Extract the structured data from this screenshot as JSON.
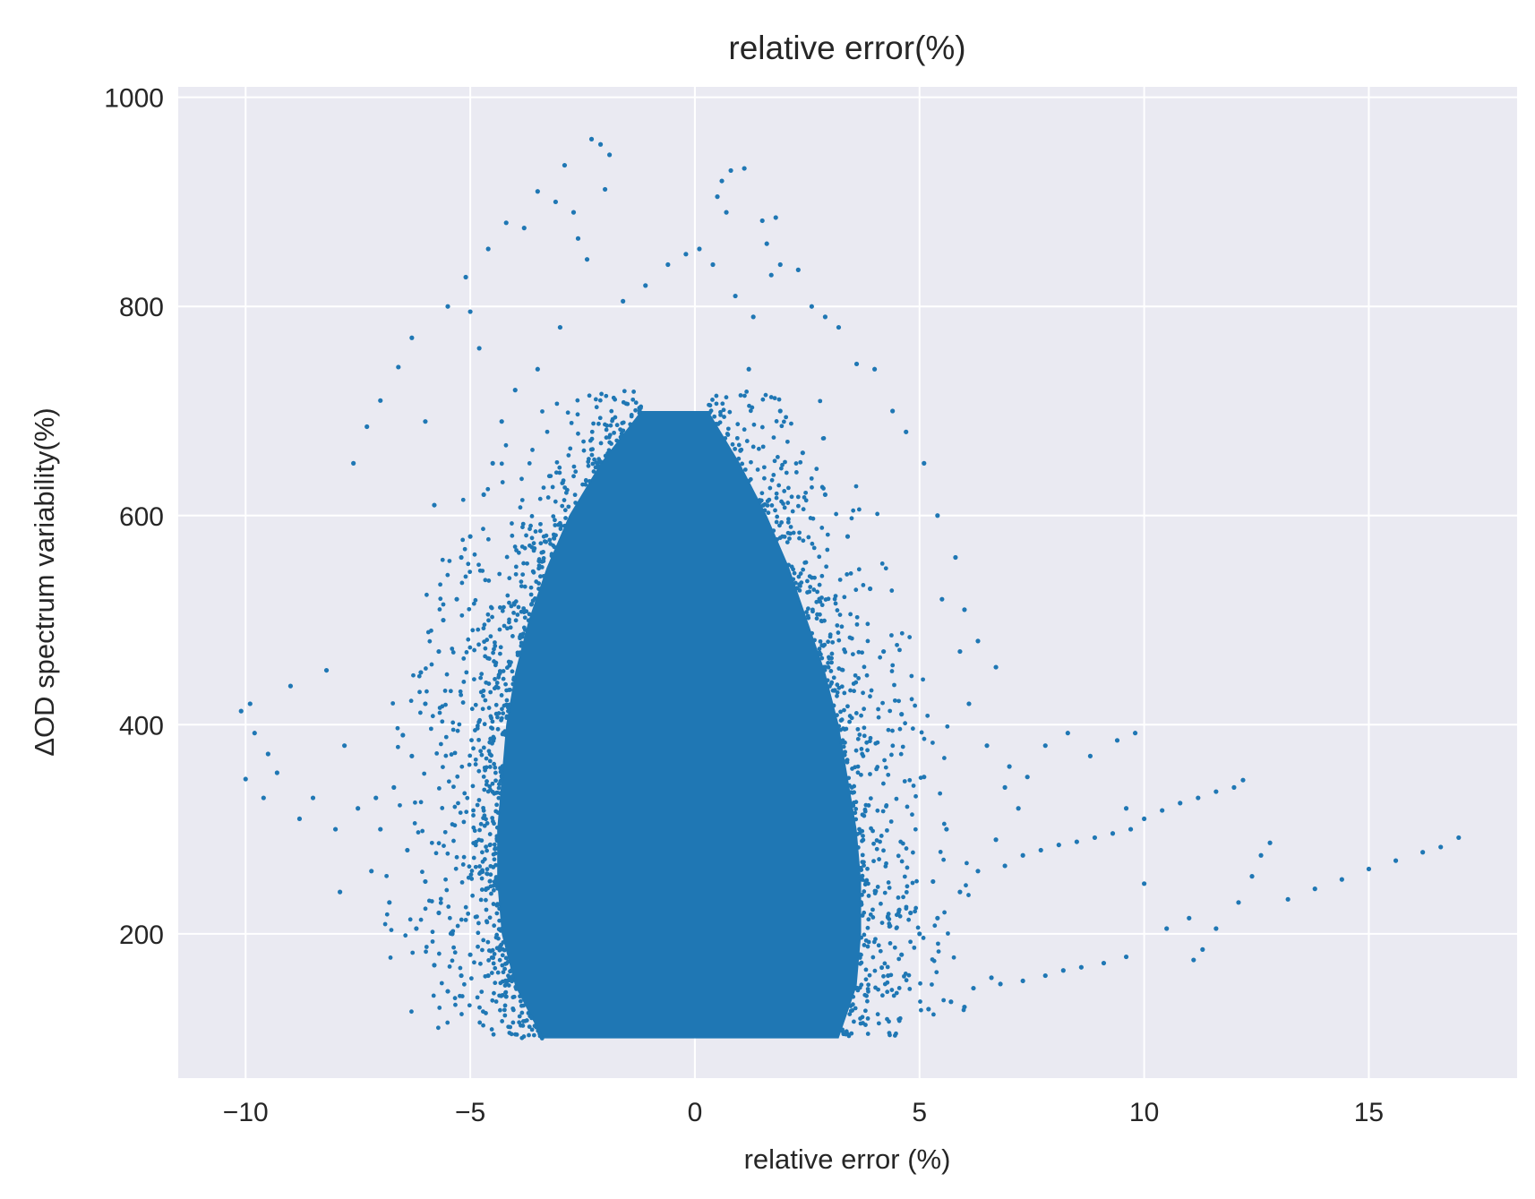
{
  "chart_data": {
    "type": "scatter",
    "title": "relative error(%)",
    "xlabel": "relative error (%)",
    "ylabel": "ΔOD spectrum variability(%)",
    "xlim": [
      -11.5,
      18.3
    ],
    "ylim": [
      62,
      1010
    ],
    "x_ticks": [
      -10,
      -5,
      0,
      5,
      10,
      15
    ],
    "x_tick_labels": [
      "−10",
      "−5",
      "0",
      "5",
      "10",
      "15"
    ],
    "y_ticks": [
      200,
      400,
      600,
      800,
      1000
    ],
    "y_tick_labels": [
      "200",
      "400",
      "600",
      "800",
      "1000"
    ],
    "grid": true,
    "background_color": "#eaeaf2",
    "grid_color": "#ffffff",
    "marker_color": "#1f77b4",
    "series": [
      {
        "dense_core_envelope": {
          "y": [
            100,
            150,
            200,
            250,
            300,
            350,
            400,
            450,
            500,
            550,
            600,
            650,
            700
          ],
          "x_min": [
            -3.4,
            -4.0,
            -4.3,
            -4.4,
            -4.4,
            -4.3,
            -4.2,
            -4.0,
            -3.7,
            -3.3,
            -2.8,
            -2.1,
            -1.2
          ],
          "x_max": [
            3.2,
            3.6,
            3.7,
            3.7,
            3.6,
            3.4,
            3.2,
            2.9,
            2.5,
            2.1,
            1.6,
            1.0,
            0.3
          ]
        },
        "points": [
          [
            -10.1,
            413
          ],
          [
            -9.9,
            420
          ],
          [
            -10.0,
            348
          ],
          [
            -9.8,
            392
          ],
          [
            -9.6,
            330
          ],
          [
            -9.5,
            372
          ],
          [
            -9.3,
            354
          ],
          [
            -9.0,
            437
          ],
          [
            -8.8,
            310
          ],
          [
            -8.5,
            330
          ],
          [
            -8.2,
            452
          ],
          [
            -8.0,
            300
          ],
          [
            -7.8,
            380
          ],
          [
            -7.5,
            320
          ],
          [
            -7.9,
            240
          ],
          [
            -7.2,
            260
          ],
          [
            -7.6,
            650
          ],
          [
            -7.3,
            685
          ],
          [
            -7.0,
            710
          ],
          [
            -6.6,
            742
          ],
          [
            -6.3,
            770
          ],
          [
            -6.0,
            690
          ],
          [
            -5.8,
            610
          ],
          [
            -5.5,
            800
          ],
          [
            -5.1,
            828
          ],
          [
            -5.0,
            795
          ],
          [
            -4.8,
            760
          ],
          [
            -4.6,
            855
          ],
          [
            -4.2,
            880
          ],
          [
            -3.8,
            875
          ],
          [
            -3.5,
            910
          ],
          [
            -3.1,
            900
          ],
          [
            -2.9,
            935
          ],
          [
            -2.7,
            890
          ],
          [
            -2.3,
            960
          ],
          [
            -2.1,
            955
          ],
          [
            -1.9,
            945
          ],
          [
            -2.0,
            912
          ],
          [
            -2.6,
            865
          ],
          [
            -2.4,
            845
          ],
          [
            -4.0,
            720
          ],
          [
            -4.5,
            650
          ],
          [
            -5.2,
            560
          ],
          [
            -5.6,
            500
          ],
          [
            -6.1,
            450
          ],
          [
            -6.5,
            390
          ],
          [
            -7.1,
            330
          ],
          [
            -6.8,
            230
          ],
          [
            -6.2,
            205
          ],
          [
            -5.8,
            170
          ],
          [
            -5.5,
            145
          ],
          [
            -5.2,
            160
          ],
          [
            0.6,
            920
          ],
          [
            0.8,
            930
          ],
          [
            1.1,
            932
          ],
          [
            0.5,
            905
          ],
          [
            0.7,
            890
          ],
          [
            1.5,
            882
          ],
          [
            1.8,
            885
          ],
          [
            1.6,
            860
          ],
          [
            1.7,
            830
          ],
          [
            1.9,
            840
          ],
          [
            2.3,
            835
          ],
          [
            2.6,
            800
          ],
          [
            2.9,
            790
          ],
          [
            3.2,
            780
          ],
          [
            3.6,
            745
          ],
          [
            4.0,
            740
          ],
          [
            4.4,
            700
          ],
          [
            4.7,
            680
          ],
          [
            5.1,
            650
          ],
          [
            5.4,
            600
          ],
          [
            5.8,
            560
          ],
          [
            6.0,
            510
          ],
          [
            6.3,
            480
          ],
          [
            6.7,
            455
          ],
          [
            6.1,
            420
          ],
          [
            6.5,
            380
          ],
          [
            7.0,
            360
          ],
          [
            7.4,
            350
          ],
          [
            7.8,
            380
          ],
          [
            8.3,
            392
          ],
          [
            8.8,
            370
          ],
          [
            9.4,
            385
          ],
          [
            9.8,
            392
          ],
          [
            9.6,
            320
          ],
          [
            10.0,
            310
          ],
          [
            10.4,
            318
          ],
          [
            10.8,
            325
          ],
          [
            11.2,
            330
          ],
          [
            11.6,
            336
          ],
          [
            12.0,
            340
          ],
          [
            12.2,
            347
          ],
          [
            9.7,
            300
          ],
          [
            9.3,
            296
          ],
          [
            8.9,
            292
          ],
          [
            8.5,
            288
          ],
          [
            8.1,
            285
          ],
          [
            7.7,
            280
          ],
          [
            7.3,
            275
          ],
          [
            6.9,
            265
          ],
          [
            10.0,
            248
          ],
          [
            10.5,
            205
          ],
          [
            11.0,
            215
          ],
          [
            11.6,
            205
          ],
          [
            12.1,
            230
          ],
          [
            12.4,
            255
          ],
          [
            12.6,
            275
          ],
          [
            12.8,
            287
          ],
          [
            13.2,
            233
          ],
          [
            13.8,
            243
          ],
          [
            14.4,
            252
          ],
          [
            15.0,
            262
          ],
          [
            15.6,
            270
          ],
          [
            16.2,
            278
          ],
          [
            16.6,
            283
          ],
          [
            17.0,
            292
          ],
          [
            11.3,
            185
          ],
          [
            11.1,
            175
          ],
          [
            9.6,
            178
          ],
          [
            9.1,
            172
          ],
          [
            8.6,
            168
          ],
          [
            8.2,
            165
          ],
          [
            7.8,
            160
          ],
          [
            7.3,
            155
          ],
          [
            6.8,
            152
          ],
          [
            6.2,
            148
          ],
          [
            5.7,
            135
          ],
          [
            5.2,
            128
          ],
          [
            6.0,
            130
          ],
          [
            6.6,
            158
          ],
          [
            4.8,
            220
          ],
          [
            5.3,
            250
          ],
          [
            5.6,
            300
          ],
          [
            5.1,
            350
          ],
          [
            4.6,
            410
          ],
          [
            4.2,
            470
          ],
          [
            3.9,
            530
          ],
          [
            3.4,
            580
          ],
          [
            2.9,
            620
          ],
          [
            2.4,
            660
          ],
          [
            1.9,
            700
          ],
          [
            1.2,
            740
          ],
          [
            -0.2,
            850
          ],
          [
            0.1,
            855
          ],
          [
            -0.6,
            840
          ],
          [
            -1.1,
            820
          ],
          [
            -1.6,
            805
          ],
          [
            0.4,
            840
          ],
          [
            0.9,
            810
          ],
          [
            1.3,
            790
          ],
          [
            -3.0,
            780
          ],
          [
            -3.5,
            740
          ],
          [
            -4.3,
            690
          ],
          [
            -4.7,
            620
          ],
          [
            -5.0,
            580
          ],
          [
            -5.3,
            520
          ],
          [
            -5.7,
            470
          ],
          [
            -6.0,
            420
          ],
          [
            -6.3,
            370
          ],
          [
            -6.7,
            340
          ],
          [
            -7.0,
            300
          ],
          [
            -6.4,
            280
          ],
          [
            -6.0,
            250
          ],
          [
            -5.7,
            220
          ],
          [
            -5.4,
            200
          ],
          [
            -5.0,
            180
          ],
          [
            -4.6,
            160
          ],
          [
            -4.2,
            140
          ],
          [
            4.3,
            160
          ],
          [
            4.6,
            180
          ],
          [
            5.0,
            200
          ],
          [
            5.4,
            215
          ],
          [
            5.9,
            240
          ],
          [
            6.3,
            260
          ],
          [
            6.7,
            290
          ],
          [
            7.2,
            320
          ],
          [
            6.9,
            340
          ],
          [
            5.9,
            470
          ],
          [
            5.5,
            520
          ]
        ]
      }
    ]
  }
}
